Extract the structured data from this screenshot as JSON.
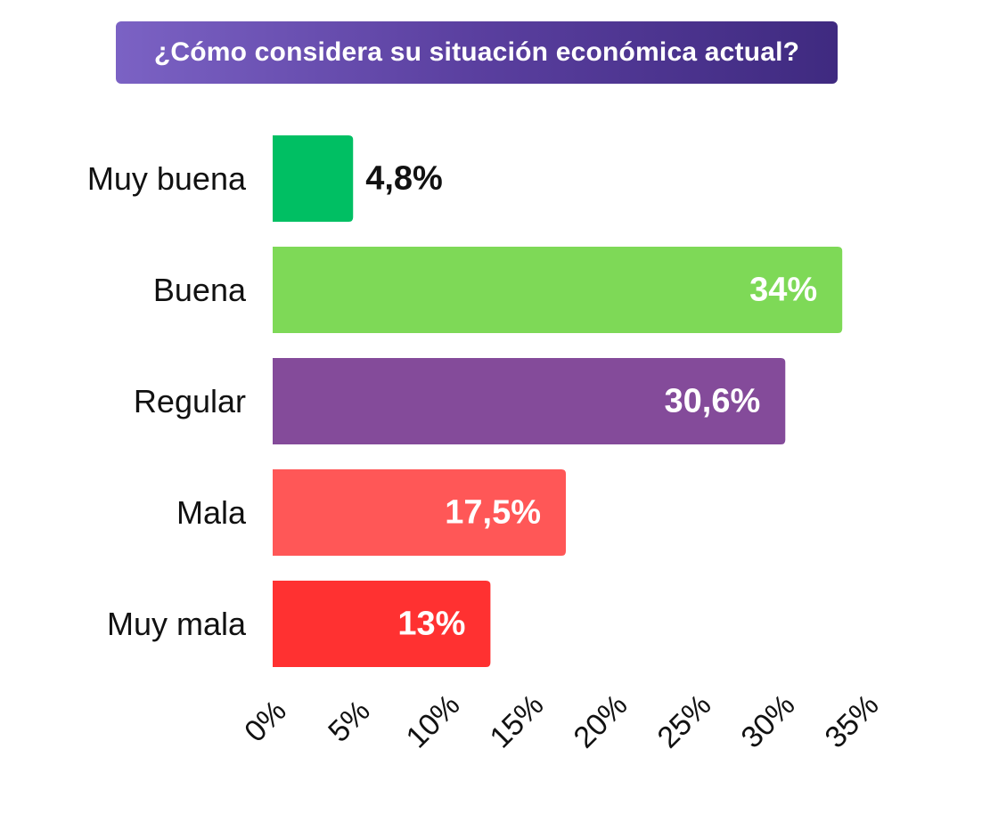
{
  "chart_data": {
    "type": "bar",
    "orientation": "horizontal",
    "title": "¿Cómo considera su situación económica actual?",
    "categories": [
      "Muy buena",
      "Buena",
      "Regular",
      "Mala",
      "Muy mala"
    ],
    "values": [
      4.8,
      34,
      30.6,
      17.5,
      13
    ],
    "value_labels": [
      "4,8%",
      "34%",
      "30,6%",
      "17,5%",
      "13%"
    ],
    "colors": [
      "#00bf63",
      "#7ed957",
      "#844b9a",
      "#ff5757",
      "#ff3131"
    ],
    "x_ticks": [
      "0%",
      "5%",
      "10%",
      "15%",
      "20%",
      "25%",
      "30%",
      "35%"
    ],
    "xlim": [
      0,
      35
    ],
    "xlabel": "",
    "ylabel": "",
    "grid": false,
    "legend": "none"
  }
}
